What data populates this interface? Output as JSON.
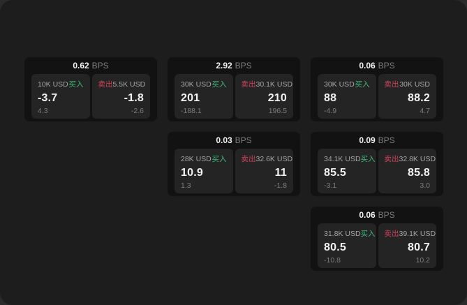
{
  "theme": {
    "page_bg": "#2b2b2b",
    "panel_bg": "#1d1d1d",
    "card_bg": "#121212",
    "tile_bg": "#242424",
    "text_primary": "#f2f2f2",
    "text_secondary": "#a6a6a6",
    "text_muted": "#7d7d7d",
    "buy_color": "#3cba77",
    "sell_color": "#cc4257"
  },
  "labels": {
    "bps": "BPS",
    "buy": "买入",
    "sell": "卖出"
  },
  "cards": [
    {
      "bps": "0.62",
      "buy": {
        "amount": "10K USD",
        "value": "-3.7",
        "sub": "4.3"
      },
      "sell": {
        "amount": "5.5K USD",
        "value": "-1.8",
        "sub": "-2.6"
      }
    },
    {
      "bps": "2.92",
      "buy": {
        "amount": "30K USD",
        "value": "201",
        "sub": "-188.1"
      },
      "sell": {
        "amount": "30.1K USD",
        "value": "210",
        "sub": "196.5"
      }
    },
    {
      "bps": "0.06",
      "buy": {
        "amount": "30K USD",
        "value": "88",
        "sub": "-4.9"
      },
      "sell": {
        "amount": "30K USD",
        "value": "88.2",
        "sub": "4.7"
      }
    },
    {
      "bps": "0.03",
      "buy": {
        "amount": "28K USD",
        "value": "10.9",
        "sub": "1.3"
      },
      "sell": {
        "amount": "32.6K USD",
        "value": "11",
        "sub": "-1.8"
      }
    },
    {
      "bps": "0.09",
      "buy": {
        "amount": "34.1K USD",
        "value": "85.5",
        "sub": "-3.1"
      },
      "sell": {
        "amount": "32.8K USD",
        "value": "85.8",
        "sub": "3.0"
      }
    },
    {
      "bps": "0.06",
      "buy": {
        "amount": "31.8K USD",
        "value": "80.5",
        "sub": "-10.8"
      },
      "sell": {
        "amount": "39.1K USD",
        "value": "80.7",
        "sub": "10.2"
      }
    }
  ]
}
